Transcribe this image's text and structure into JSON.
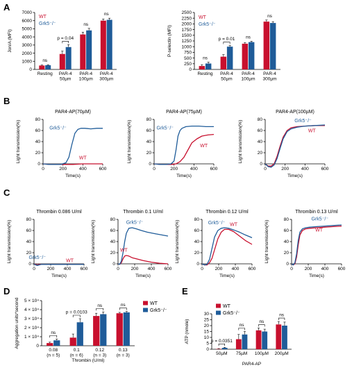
{
  "colors": {
    "wt": "#c8102e",
    "ko": "#1f5c99",
    "axis": "#000000"
  },
  "panels": {
    "A": "A",
    "B": "B",
    "C": "C",
    "D": "D",
    "E": "E"
  },
  "chart_data": [
    {
      "id": "A1",
      "type": "bar",
      "categories": [
        [
          "Resting"
        ],
        [
          "PAR-4",
          "50µm"
        ],
        [
          "PAR-4",
          "100µm"
        ],
        [
          "PAR-4",
          "300µm"
        ]
      ],
      "series": [
        {
          "name": "WT",
          "values": [
            480,
            1900,
            4300,
            6000
          ],
          "errors": [
            60,
            350,
            280,
            200
          ]
        },
        {
          "name": "Grk5⁻/⁻",
          "values": [
            520,
            2750,
            4800,
            6100
          ],
          "errors": [
            60,
            300,
            250,
            200
          ]
        }
      ],
      "ylabel": "Jon/A (MFI)",
      "ylim": [
        0,
        7000
      ],
      "yticks": [
        0,
        1000,
        2000,
        3000,
        4000,
        5000,
        6000,
        7000
      ],
      "annotations": [
        {
          "text": "ns",
          "cat": 0
        },
        {
          "text": "p = 0.04",
          "cat": 1,
          "bracket": true
        },
        {
          "text": "ns",
          "cat": 2
        },
        {
          "text": "ns",
          "cat": 3
        }
      ]
    },
    {
      "id": "A2",
      "type": "bar",
      "categories": [
        [
          "Resting"
        ],
        [
          "PAR-4",
          "50µm"
        ],
        [
          "PAR-4",
          "100µm"
        ],
        [
          "PAR-4",
          "300µm"
        ]
      ],
      "series": [
        {
          "name": "WT",
          "values": [
            150,
            560,
            1130,
            2100
          ],
          "errors": [
            60,
            90,
            50,
            70
          ]
        },
        {
          "name": "Grk5⁻/⁻",
          "values": [
            260,
            1000,
            1200,
            2040
          ],
          "errors": [
            60,
            50,
            40,
            60
          ]
        }
      ],
      "ylabel": "P-selectin (MFI)",
      "ylim": [
        0,
        2500
      ],
      "yticks": [
        0,
        250,
        500,
        750,
        1000,
        1250,
        1500,
        1750,
        2000,
        2250,
        2500
      ],
      "annotations": [
        {
          "text": "ns",
          "cat": 0
        },
        {
          "text": "p = 0.01",
          "cat": 1,
          "bracket": true
        },
        {
          "text": "ns",
          "cat": 2
        },
        {
          "text": "ns",
          "cat": 3
        }
      ]
    },
    {
      "id": "B1",
      "type": "line",
      "title": "PAR4-AP(70µM)",
      "xlabel": "Time(s)",
      "ylabel": "Light transmission(%)",
      "xlim": [
        0,
        600
      ],
      "ylim": [
        0,
        80
      ],
      "xticks": [
        0,
        200,
        400,
        600
      ],
      "yticks": [
        0,
        20,
        40,
        60,
        80
      ],
      "series": [
        {
          "name": "Grk5⁻/⁻",
          "x": [
            0,
            60,
            120,
            180,
            230,
            260,
            290,
            320,
            350,
            380,
            420,
            480,
            540,
            600
          ],
          "y": [
            0,
            -1,
            -1,
            -1,
            2,
            12,
            35,
            55,
            62,
            64,
            64,
            63,
            64,
            64
          ]
        },
        {
          "name": "WT",
          "x": [
            0,
            60,
            120,
            200,
            300,
            400,
            500,
            600
          ],
          "y": [
            0,
            -1,
            -1,
            -1,
            -1,
            0,
            0,
            0
          ]
        }
      ],
      "labels": [
        {
          "text": "Grk5⁻/⁻",
          "series": 0,
          "x": 150,
          "y": 62
        },
        {
          "text": "WT",
          "series": 1,
          "x": 400,
          "y": 8
        }
      ]
    },
    {
      "id": "B2",
      "type": "line",
      "title": "PAR4-AP(75µM)",
      "xlabel": "Time(s)",
      "ylabel": "Light transmission(%)",
      "xlim": [
        0,
        600
      ],
      "ylim": [
        0,
        80
      ],
      "xticks": [
        0,
        200,
        400,
        600
      ],
      "yticks": [
        0,
        20,
        40,
        60,
        80
      ],
      "series": [
        {
          "name": "Grk5⁻/⁻",
          "x": [
            0,
            60,
            120,
            170,
            200,
            220,
            240,
            260,
            280,
            320,
            380,
            450,
            520,
            600
          ],
          "y": [
            0,
            -1,
            -1,
            0,
            5,
            25,
            50,
            60,
            64,
            67,
            68,
            68,
            67,
            67
          ]
        },
        {
          "name": "WT",
          "x": [
            0,
            60,
            120,
            180,
            220,
            260,
            300,
            340,
            380,
            430,
            480,
            540,
            600
          ],
          "y": [
            0,
            -1,
            -1,
            -1,
            0,
            4,
            12,
            25,
            38,
            45,
            50,
            52,
            53
          ]
        }
      ],
      "labels": [
        {
          "text": "Grk5⁻/⁻",
          "series": 0,
          "x": 110,
          "y": 62
        },
        {
          "text": "WT",
          "series": 1,
          "x": 500,
          "y": 30
        }
      ]
    },
    {
      "id": "B3",
      "type": "line",
      "title": "PAR4-AP(100µM)",
      "xlabel": "Time(s)",
      "ylabel": "Light transmission(%)",
      "xlim": [
        0,
        600
      ],
      "ylim": [
        0,
        80
      ],
      "xticks": [
        0,
        200,
        400,
        600
      ],
      "yticks": [
        0,
        20,
        40,
        60,
        80
      ],
      "series": [
        {
          "name": "Grk5⁻/⁻",
          "x": [
            0,
            30,
            60,
            90,
            120,
            150,
            180,
            220,
            260,
            320,
            400,
            500,
            600
          ],
          "y": [
            0,
            -5,
            -6,
            -2,
            10,
            28,
            45,
            58,
            63,
            66,
            68,
            69,
            70
          ]
        },
        {
          "name": "WT",
          "x": [
            0,
            30,
            60,
            90,
            120,
            150,
            180,
            220,
            260,
            320,
            400,
            500,
            600
          ],
          "y": [
            0,
            -4,
            -4,
            0,
            14,
            32,
            48,
            60,
            65,
            67,
            68,
            69,
            69
          ]
        }
      ],
      "labels": [
        {
          "text": "Grk5⁻/⁻",
          "series": 0,
          "x": 380,
          "y": 75
        },
        {
          "text": "WT",
          "series": 1,
          "x": 470,
          "y": 57
        }
      ]
    },
    {
      "id": "C1",
      "type": "line",
      "title": "Thrombin 0.086 U/ml",
      "xlabel": "Time(s)",
      "ylabel": "Light transmission(%)",
      "xlim": [
        0,
        600
      ],
      "ylim": [
        0,
        80
      ],
      "xticks": [
        0,
        200,
        400,
        600
      ],
      "yticks": [
        0,
        20,
        40,
        60,
        80
      ],
      "series": [
        {
          "name": "Grk5⁻/⁻",
          "x": [
            0,
            20,
            40,
            60,
            90,
            120,
            200,
            300,
            400,
            500,
            600
          ],
          "y": [
            0,
            -2,
            -3,
            -2,
            -1,
            -1,
            -1,
            -1,
            -1,
            -1,
            -1
          ]
        },
        {
          "name": "WT",
          "x": [
            0,
            20,
            40,
            60,
            90,
            120,
            200,
            300,
            400,
            500,
            600
          ],
          "y": [
            0,
            -1,
            -2,
            -1,
            -1,
            -1,
            -1,
            -1,
            -1,
            -1,
            -1
          ]
        }
      ],
      "labels": [
        {
          "text": "Grk5⁻/⁻",
          "series": 0,
          "x": 40,
          "y": 9
        },
        {
          "text": "WT",
          "series": 1,
          "x": 430,
          "y": 3
        }
      ]
    },
    {
      "id": "C2",
      "type": "line",
      "title": "Thrombin 0.1 U/ml",
      "xlabel": "Time(s)",
      "ylabel": "Light transmission(%)",
      "xlim": [
        0,
        600
      ],
      "ylim": [
        0,
        80
      ],
      "xticks": [
        0,
        200,
        400,
        600
      ],
      "yticks": [
        0,
        20,
        40,
        60,
        80
      ],
      "series": [
        {
          "name": "Grk5⁻/⁻",
          "x": [
            0,
            20,
            40,
            60,
            80,
            100,
            130,
            170,
            220,
            280,
            350,
            450,
            600
          ],
          "y": [
            0,
            -1,
            5,
            20,
            40,
            55,
            64,
            65,
            63,
            60,
            57,
            54,
            50
          ]
        },
        {
          "name": "WT",
          "x": [
            0,
            20,
            40,
            60,
            80,
            100,
            130,
            170,
            220,
            300,
            400,
            500,
            600
          ],
          "y": [
            0,
            -1,
            2,
            9,
            14,
            15,
            14,
            11,
            9,
            6,
            3,
            1,
            0
          ]
        }
      ],
      "labels": [
        {
          "text": "Grk5⁻/⁻",
          "series": 0,
          "x": 200,
          "y": 72
        },
        {
          "text": "WT",
          "series": 1,
          "x": 70,
          "y": 22
        }
      ]
    },
    {
      "id": "C3",
      "type": "line",
      "title": "Thrombin 0.12 U/ml",
      "xlabel": "Time(s)",
      "ylabel": "Light transmission(%)",
      "xlim": [
        0,
        600
      ],
      "ylim": [
        0,
        80
      ],
      "xticks": [
        0,
        200,
        400,
        600
      ],
      "yticks": [
        0,
        20,
        40,
        60,
        80
      ],
      "series": [
        {
          "name": "Grk5⁻/⁻",
          "x": [
            0,
            30,
            60,
            90,
            120,
            150,
            190,
            230,
            270,
            320,
            380,
            450,
            520,
            600
          ],
          "y": [
            0,
            -2,
            -1,
            8,
            28,
            48,
            60,
            64,
            65,
            64,
            61,
            57,
            52,
            47
          ]
        },
        {
          "name": "WT",
          "x": [
            0,
            30,
            60,
            90,
            120,
            150,
            190,
            230,
            270,
            320,
            380,
            450,
            520,
            600
          ],
          "y": [
            0,
            -2,
            -2,
            2,
            10,
            25,
            45,
            57,
            62,
            62,
            58,
            50,
            42,
            35
          ]
        }
      ],
      "labels": [
        {
          "text": "Grk5⁻/⁻",
          "series": 0,
          "x": 175,
          "y": 71
        },
        {
          "text": "WT",
          "series": 1,
          "x": 380,
          "y": 68
        }
      ]
    },
    {
      "id": "C4",
      "type": "line",
      "title": "Thrombin 0.13 U/ml",
      "xlabel": "Time(s)",
      "ylabel": "Light transmission(%)",
      "xlim": [
        0,
        600
      ],
      "ylim": [
        0,
        80
      ],
      "xticks": [
        0,
        200,
        400,
        600
      ],
      "yticks": [
        0,
        20,
        40,
        60,
        80
      ],
      "series": [
        {
          "name": "Grk5⁻/⁻",
          "x": [
            0,
            20,
            40,
            60,
            80,
            100,
            130,
            170,
            220,
            300,
            400,
            500,
            600
          ],
          "y": [
            0,
            -2,
            2,
            18,
            42,
            57,
            63,
            65,
            66,
            67,
            68,
            69,
            70
          ]
        },
        {
          "name": "WT",
          "x": [
            0,
            20,
            40,
            60,
            80,
            100,
            130,
            170,
            220,
            300,
            400,
            500,
            600
          ],
          "y": [
            0,
            -2,
            0,
            12,
            34,
            52,
            60,
            63,
            64,
            65,
            66,
            67,
            68
          ]
        }
      ],
      "labels": [
        {
          "text": "Grk5⁻/⁻",
          "series": 0,
          "x": 340,
          "y": 78
        },
        {
          "text": "WT",
          "series": 1,
          "x": 330,
          "y": 58
        }
      ]
    },
    {
      "id": "D",
      "type": "bar",
      "categories": [
        [
          "0.08",
          "(n = 5)"
        ],
        [
          "0.1",
          "(n = 6)"
        ],
        [
          "0.12",
          "(n = 3)"
        ],
        [
          "0.13",
          "(n = 3)"
        ]
      ],
      "series": [
        {
          "name": "WT",
          "values": [
            3000,
            9000,
            33000,
            36000
          ],
          "errors": [
            1000,
            4000,
            3000,
            1000
          ]
        },
        {
          "name": "Grk5⁻/⁻",
          "values": [
            6000,
            26000,
            35000,
            37000
          ],
          "errors": [
            1500,
            4000,
            2500,
            1000
          ]
        }
      ],
      "xlabel": "Thrombin (U/ml)",
      "ylabel": "Aggregation units*second",
      "ylim": [
        0,
        50000
      ],
      "yticks": [
        "0",
        "1 × 10⁴",
        "2 × 10⁴",
        "3 × 10⁴",
        "4 × 10⁴",
        "5 × 10⁴"
      ],
      "annotations": [
        {
          "text": "ns",
          "cat": 0,
          "bracket": true
        },
        {
          "text": "p = 0.0103",
          "cat": 1,
          "bracket": true
        },
        {
          "text": "ns",
          "cat": 2,
          "bracket": true
        },
        {
          "text": "ns",
          "cat": 3,
          "bracket": true
        }
      ]
    },
    {
      "id": "E",
      "type": "bar",
      "categories": [
        [
          "50µM"
        ],
        [
          "75µM"
        ],
        [
          "100µM"
        ],
        [
          "200µM"
        ]
      ],
      "series": [
        {
          "name": "WT",
          "values": [
            0.3,
            8.5,
            16,
            21
          ],
          "errors": [
            0.3,
            4,
            2,
            2.5
          ]
        },
        {
          "name": "Grk5⁻/⁻",
          "values": [
            1.2,
            12.5,
            15,
            20
          ],
          "errors": [
            0.4,
            2.5,
            2,
            3
          ]
        }
      ],
      "xlabel": "PAR4-AP",
      "ylabel": "ATP (nmole)",
      "ylim": [
        0,
        30
      ],
      "yticks": [
        0,
        5,
        10,
        15,
        20,
        25,
        30
      ],
      "annotations": [
        {
          "text": "p = 0.0351",
          "cat": 0,
          "bracket": true
        },
        {
          "text": "ns",
          "cat": 1,
          "bracket": true
        },
        {
          "text": "ns",
          "cat": 2,
          "bracket": true
        },
        {
          "text": "ns",
          "cat": 3,
          "bracket": true
        }
      ]
    }
  ]
}
